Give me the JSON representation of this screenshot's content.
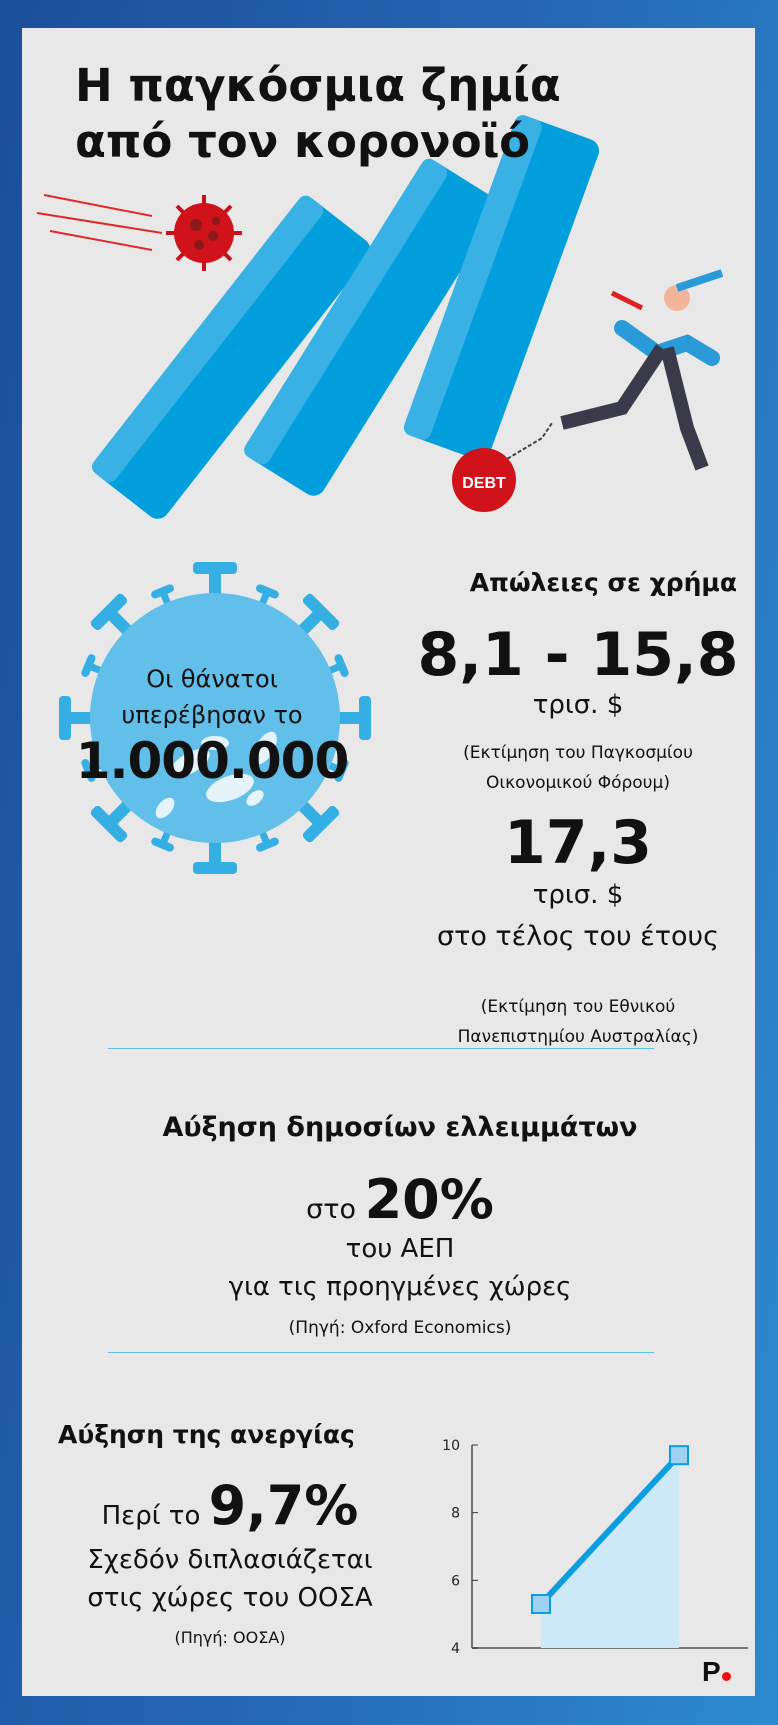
{
  "title": {
    "line1": "Η παγκόσμια ζημία",
    "line2": "από τον κορονοϊό"
  },
  "illustration": {
    "debt_label": "DEBT",
    "icons": [
      "virus-icon",
      "domino-bars",
      "businessman-running",
      "debt-ball-and-chain"
    ]
  },
  "deaths": {
    "line1": "Οι θάνατοι",
    "line2": "υπερέβησαν το",
    "value": "1.000.000"
  },
  "losses": {
    "heading": "Απώλειες σε χρήμα",
    "estimate1": {
      "value": "8,1 - 15,8",
      "unit": "τρισ. $",
      "source_line1": "(Εκτίμηση του Παγκοσμίου",
      "source_line2": "Οικονομικού Φόρουμ)"
    },
    "estimate2": {
      "value": "17,3",
      "unit": "τρισ. $",
      "note": "στο τέλος του έτους",
      "source_line1": "(Εκτίμηση του Εθνικού",
      "source_line2": "Πανεπιστημίου Αυστραλίας)"
    }
  },
  "deficits": {
    "heading": "Αύξηση δημοσίων ελλειμμάτων",
    "prefix": "στο",
    "value": "20%",
    "line2": "του ΑΕΠ",
    "line3": "για τις προηγμένες χώρες",
    "source": "(Πηγή: Oxford Economics)"
  },
  "unemployment": {
    "heading": "Αύξηση της ανεργίας",
    "prefix": "Περί το",
    "value": "9,7%",
    "line2": "Σχεδόν διπλασιάζεται",
    "line3": "στις χώρες του ΟΟΣΑ",
    "source": "(Πηγή: ΟΟΣΑ)"
  },
  "chart_data": {
    "type": "area",
    "values": [
      5.3,
      9.7
    ],
    "ylim": [
      4,
      10
    ],
    "yticks": [
      "4",
      "6",
      "8",
      "10"
    ],
    "grid": false,
    "colors": {
      "line": "#0a9ee0",
      "fill": "#cde9f7",
      "marker": "#9fd2f0"
    }
  },
  "logo": {
    "text": "P",
    "dot_color": "#ee1111"
  },
  "colors": {
    "accent": "#35aee3",
    "virus_red": "#d0121b",
    "panel": "#e8e8e8"
  }
}
